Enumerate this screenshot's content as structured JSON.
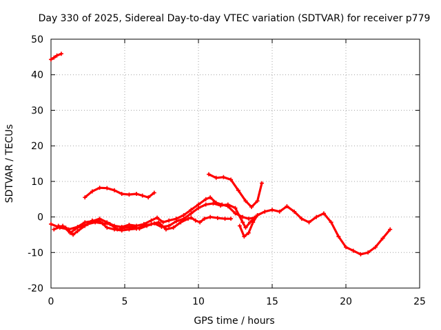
{
  "chart_data": {
    "type": "scatter",
    "title": "Day 330 of 2025, Sidereal Day-to-day VTEC variation (SDTVAR) for receiver p779",
    "xlabel": "GPS time / hours",
    "ylabel": "SDTVAR / TECUs",
    "xlim": [
      0,
      25
    ],
    "ylim": [
      -20,
      50
    ],
    "xticks": [
      "0",
      "5",
      "10",
      "15",
      "20",
      "25"
    ],
    "yticks": [
      "-20",
      "-10",
      "0",
      "10",
      "20",
      "30",
      "40",
      "50"
    ],
    "grid": true,
    "color": "#ff0000",
    "series": [
      {
        "name": "trace-1",
        "points": [
          [
            0.0,
            44.3
          ],
          [
            0.2,
            44.8
          ],
          [
            0.4,
            45.4
          ],
          [
            0.7,
            45.9
          ]
        ]
      },
      {
        "name": "trace-2",
        "points": [
          [
            2.3,
            5.5
          ],
          [
            2.8,
            7.2
          ],
          [
            3.3,
            8.2
          ],
          [
            3.8,
            8.1
          ],
          [
            4.3,
            7.5
          ],
          [
            4.8,
            6.5
          ],
          [
            5.3,
            6.3
          ],
          [
            5.8,
            6.5
          ],
          [
            6.2,
            6.0
          ],
          [
            6.6,
            5.5
          ],
          [
            7.0,
            6.8
          ]
        ]
      },
      {
        "name": "trace-3",
        "points": [
          [
            0.0,
            -2.0
          ],
          [
            0.6,
            -3.0
          ],
          [
            1.2,
            -3.5
          ],
          [
            1.8,
            -2.8
          ],
          [
            2.3,
            -1.5
          ],
          [
            2.8,
            -1.2
          ],
          [
            3.3,
            -0.5
          ],
          [
            3.8,
            -1.5
          ],
          [
            4.3,
            -2.5
          ],
          [
            4.8,
            -2.8
          ],
          [
            5.3,
            -2.2
          ],
          [
            5.8,
            -2.5
          ],
          [
            6.3,
            -2.0
          ],
          [
            6.8,
            -1.0
          ],
          [
            7.2,
            -0.2
          ],
          [
            7.6,
            -1.5
          ],
          [
            8.0,
            -1.0
          ],
          [
            8.5,
            -0.5
          ],
          [
            9.0,
            0.5
          ],
          [
            9.5,
            2.0
          ],
          [
            10.0,
            3.5
          ],
          [
            10.5,
            5.0
          ],
          [
            10.8,
            5.5
          ],
          [
            11.2,
            4.0
          ],
          [
            11.6,
            3.5
          ],
          [
            12.0,
            3.0
          ],
          [
            12.5,
            1.0
          ],
          [
            13.0,
            0.0
          ],
          [
            13.4,
            -0.5
          ],
          [
            13.8,
            -0.2
          ]
        ]
      },
      {
        "name": "trace-4",
        "points": [
          [
            0.2,
            -3.5
          ],
          [
            0.8,
            -2.5
          ],
          [
            1.3,
            -4.5
          ],
          [
            1.8,
            -3.0
          ],
          [
            2.5,
            -2.0
          ],
          [
            3.0,
            -1.5
          ],
          [
            3.5,
            -1.8
          ],
          [
            4.0,
            -2.0
          ],
          [
            4.5,
            -3.5
          ],
          [
            5.0,
            -3.0
          ],
          [
            5.5,
            -2.8
          ],
          [
            6.0,
            -3.3
          ],
          [
            6.5,
            -2.5
          ],
          [
            7.0,
            -1.8
          ],
          [
            7.5,
            -2.8
          ],
          [
            8.0,
            -2.5
          ],
          [
            8.5,
            -1.2
          ],
          [
            9.0,
            -0.5
          ],
          [
            9.5,
            1.0
          ],
          [
            10.0,
            2.5
          ],
          [
            10.5,
            3.5
          ],
          [
            11.0,
            3.8
          ],
          [
            11.5,
            3.2
          ],
          [
            12.0,
            3.5
          ],
          [
            12.5,
            2.5
          ],
          [
            13.0,
            -1.5
          ],
          [
            13.2,
            -3.0
          ],
          [
            13.5,
            -1.5
          ],
          [
            14.0,
            0.5
          ]
        ]
      },
      {
        "name": "trace-5",
        "points": [
          [
            0.5,
            -2.5
          ],
          [
            1.0,
            -3.0
          ],
          [
            1.5,
            -5.0
          ],
          [
            1.8,
            -4.0
          ],
          [
            2.3,
            -2.5
          ],
          [
            2.8,
            -1.0
          ],
          [
            3.3,
            -1.2
          ],
          [
            3.8,
            -3.0
          ],
          [
            4.3,
            -3.5
          ],
          [
            4.8,
            -3.8
          ],
          [
            5.3,
            -3.5
          ],
          [
            5.8,
            -3.3
          ],
          [
            6.3,
            -2.5
          ],
          [
            6.8,
            -2.0
          ],
          [
            7.3,
            -1.5
          ],
          [
            7.8,
            -3.5
          ],
          [
            8.3,
            -3.0
          ],
          [
            8.8,
            -1.5
          ],
          [
            9.3,
            -0.5
          ],
          [
            9.5,
            -0.2
          ],
          [
            9.8,
            -1.0
          ],
          [
            10.1,
            -1.5
          ],
          [
            10.4,
            -0.5
          ],
          [
            10.8,
            0.0
          ],
          [
            11.3,
            -0.3
          ],
          [
            11.8,
            -0.5
          ],
          [
            12.2,
            -0.5
          ]
        ]
      },
      {
        "name": "trace-6",
        "points": [
          [
            10.7,
            12.0
          ],
          [
            11.2,
            11.0
          ],
          [
            11.7,
            11.2
          ],
          [
            12.2,
            10.5
          ],
          [
            12.7,
            7.5
          ],
          [
            13.2,
            4.5
          ],
          [
            13.6,
            2.8
          ],
          [
            14.0,
            4.5
          ],
          [
            14.3,
            9.5
          ]
        ]
      },
      {
        "name": "trace-7",
        "points": [
          [
            12.8,
            -2.5
          ],
          [
            13.1,
            -5.5
          ],
          [
            13.4,
            -4.5
          ],
          [
            13.7,
            -1.5
          ],
          [
            14.0,
            0.5
          ],
          [
            14.5,
            1.5
          ],
          [
            15.0,
            2.0
          ],
          [
            15.5,
            1.5
          ],
          [
            16.0,
            3.0
          ],
          [
            16.5,
            1.5
          ],
          [
            17.0,
            -0.5
          ],
          [
            17.5,
            -1.5
          ],
          [
            18.0,
            0.0
          ],
          [
            18.5,
            1.0
          ],
          [
            19.0,
            -1.5
          ],
          [
            19.5,
            -5.5
          ],
          [
            20.0,
            -8.5
          ],
          [
            20.5,
            -9.5
          ],
          [
            21.0,
            -10.5
          ],
          [
            21.5,
            -10.0
          ],
          [
            22.0,
            -8.5
          ],
          [
            22.5,
            -6.0
          ],
          [
            23.0,
            -3.5
          ]
        ]
      }
    ]
  }
}
